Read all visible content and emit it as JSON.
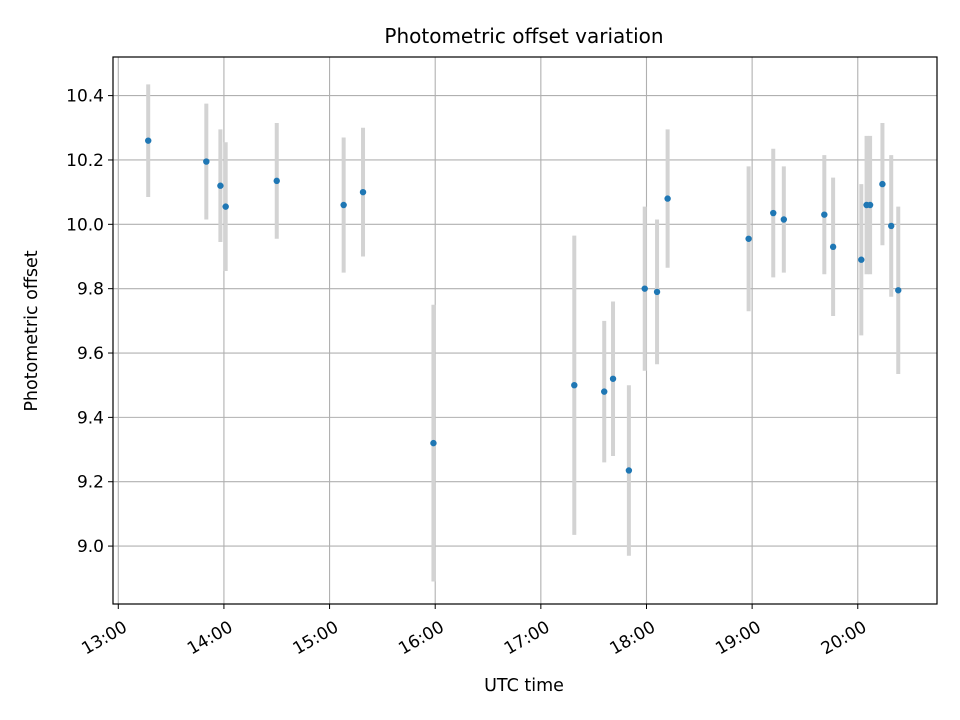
{
  "chart_data": {
    "type": "scatter",
    "title": "Photometric offset variation",
    "xlabel": "UTC time",
    "ylabel": "Photometric offset",
    "x_unit": "UTC time (HH:MM)",
    "xlim": [
      "12:57",
      "20:45"
    ],
    "ylim": [
      8.82,
      10.52
    ],
    "x_ticks": [
      "13:00",
      "14:00",
      "15:00",
      "16:00",
      "17:00",
      "18:00",
      "19:00",
      "20:00"
    ],
    "y_ticks": [
      "9.0",
      "9.2",
      "9.4",
      "9.6",
      "9.8",
      "10.0",
      "10.2",
      "10.4"
    ],
    "grid": true,
    "point_color": "#1f77b4",
    "errorbar_color": "#d3d3d3",
    "series": [
      {
        "points": [
          {
            "x": "13:17",
            "y": 10.26,
            "err": 0.175
          },
          {
            "x": "13:50",
            "y": 10.195,
            "err": 0.18
          },
          {
            "x": "13:58",
            "y": 10.12,
            "err": 0.175
          },
          {
            "x": "14:01",
            "y": 10.055,
            "err": 0.2
          },
          {
            "x": "14:30",
            "y": 10.135,
            "err": 0.18
          },
          {
            "x": "15:08",
            "y": 10.06,
            "err": 0.21
          },
          {
            "x": "15:19",
            "y": 10.1,
            "err": 0.2
          },
          {
            "x": "15:59",
            "y": 9.32,
            "err": 0.43
          },
          {
            "x": "17:19",
            "y": 9.5,
            "err": 0.465
          },
          {
            "x": "17:36",
            "y": 9.48,
            "err": 0.22
          },
          {
            "x": "17:41",
            "y": 9.52,
            "err": 0.24
          },
          {
            "x": "17:50",
            "y": 9.235,
            "err": 0.265
          },
          {
            "x": "17:59",
            "y": 9.8,
            "err": 0.255
          },
          {
            "x": "18:06",
            "y": 9.79,
            "err": 0.225
          },
          {
            "x": "18:12",
            "y": 10.08,
            "err": 0.215
          },
          {
            "x": "18:58",
            "y": 9.955,
            "err": 0.225
          },
          {
            "x": "19:12",
            "y": 10.035,
            "err": 0.2
          },
          {
            "x": "19:18",
            "y": 10.015,
            "err": 0.165
          },
          {
            "x": "19:41",
            "y": 10.03,
            "err": 0.185
          },
          {
            "x": "19:46",
            "y": 9.93,
            "err": 0.215
          },
          {
            "x": "20:02",
            "y": 9.89,
            "err": 0.235
          },
          {
            "x": "20:05",
            "y": 10.06,
            "err": 0.215
          },
          {
            "x": "20:07",
            "y": 10.06,
            "err": 0.215
          },
          {
            "x": "20:14",
            "y": 10.125,
            "err": 0.19
          },
          {
            "x": "20:19",
            "y": 9.995,
            "err": 0.22
          },
          {
            "x": "20:23",
            "y": 9.795,
            "err": 0.26
          }
        ]
      }
    ]
  }
}
